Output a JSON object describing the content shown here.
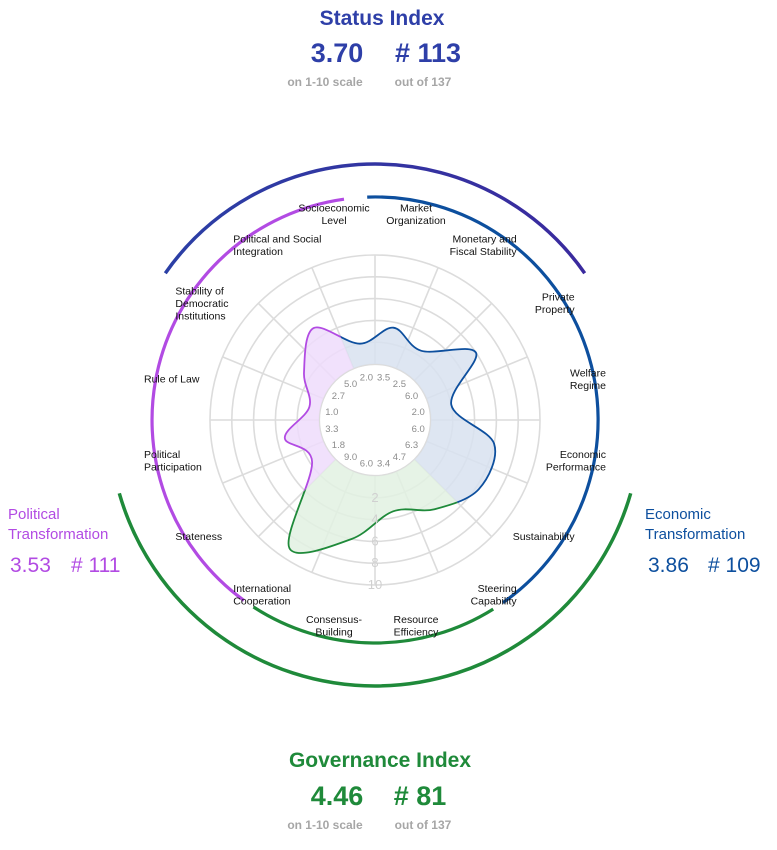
{
  "status_index": {
    "title": "Status Index",
    "score": "3.70",
    "rank": "# 113",
    "score_note": "on 1-10 scale",
    "rank_note": "out of 137",
    "color": "#2e3fa8"
  },
  "governance_index": {
    "title": "Governance Index",
    "score": "4.46",
    "rank": "# 81",
    "score_note": "on 1-10 scale",
    "rank_note": "out of 137",
    "color": "#1f8a3a"
  },
  "political_transformation": {
    "title_line1": "Political",
    "title_line2": "Transformation",
    "score": "3.53",
    "rank": "# 111",
    "color": "#b24be3"
  },
  "economic_transformation": {
    "title_line1": "Economic",
    "title_line2": "Transformation",
    "score": "3.86",
    "rank": "# 109",
    "color": "#0d4f9e"
  },
  "colors": {
    "political_fill": "#efdcfb",
    "economic_fill": "#d8e2f0",
    "governance_fill": "#e2f1e2",
    "grid": "#dcdcdc",
    "status_arc_start": "#2b3fa5",
    "status_arc_end": "#3a2a9e"
  },
  "chart_data": {
    "type": "radar",
    "scale_ticks": [
      "2",
      "4",
      "6",
      "8",
      "10"
    ],
    "categories": [
      {
        "label": [
          "Market",
          "Organization"
        ],
        "value": 3.5,
        "group": "economic"
      },
      {
        "label": [
          "Monetary and",
          "Fiscal Stability"
        ],
        "value": 2.5,
        "group": "economic"
      },
      {
        "label": [
          "Private",
          "Property"
        ],
        "value": 6.0,
        "group": "economic"
      },
      {
        "label": [
          "Welfare",
          "Regime"
        ],
        "value": 2.0,
        "group": "economic"
      },
      {
        "label": [
          "Economic",
          "Performance"
        ],
        "value": 6.0,
        "group": "economic"
      },
      {
        "label": [
          "Sustainability"
        ],
        "value": 6.3,
        "group": "economic"
      },
      {
        "label": [
          "Steering",
          "Capability"
        ],
        "value": 4.7,
        "group": "governance"
      },
      {
        "label": [
          "Resource",
          "Efficiency"
        ],
        "value": 3.4,
        "group": "governance"
      },
      {
        "label": [
          "Consensus-",
          "Building"
        ],
        "value": 6.0,
        "group": "governance"
      },
      {
        "label": [
          "International",
          "Cooperation"
        ],
        "value": 9.0,
        "group": "governance"
      },
      {
        "label": [
          "Stateness"
        ],
        "value": 1.8,
        "group": "political"
      },
      {
        "label": [
          "Political",
          "Participation"
        ],
        "value": 3.3,
        "group": "political"
      },
      {
        "label": [
          "Rule of Law"
        ],
        "value": 1.0,
        "group": "political"
      },
      {
        "label": [
          "Stability of",
          "Democratic",
          "Institutions"
        ],
        "value": 2.7,
        "group": "political"
      },
      {
        "label": [
          "Political and Social",
          "Integration"
        ],
        "value": 5.0,
        "group": "political"
      },
      {
        "label": [
          "Socioeconomic",
          "Level"
        ],
        "value": 2.0,
        "group": "economic"
      }
    ]
  }
}
